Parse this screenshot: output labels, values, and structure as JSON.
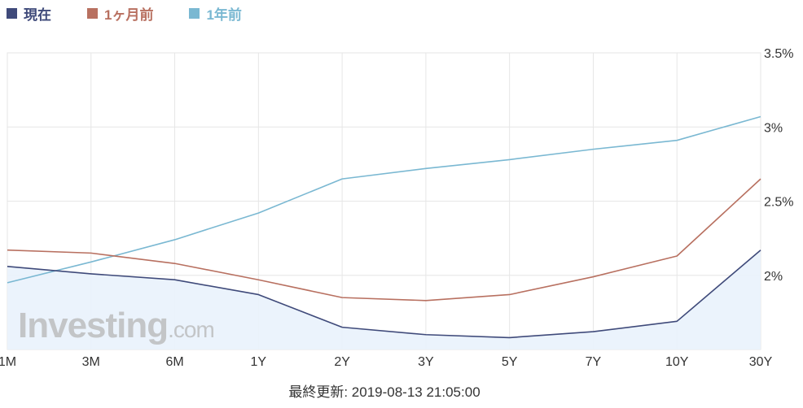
{
  "chart_data": {
    "type": "line",
    "categories": [
      "1M",
      "3M",
      "6M",
      "1Y",
      "2Y",
      "3Y",
      "5Y",
      "7Y",
      "10Y",
      "30Y"
    ],
    "series": [
      {
        "name": "現在",
        "color": "#3f4a7a",
        "values": [
          2.06,
          2.01,
          1.97,
          1.87,
          1.65,
          1.6,
          1.58,
          1.62,
          1.69,
          2.17
        ],
        "filled": true
      },
      {
        "name": "1ヶ月前",
        "color": "#b87060",
        "values": [
          2.17,
          2.15,
          2.08,
          1.97,
          1.85,
          1.83,
          1.87,
          1.99,
          2.13,
          2.65
        ],
        "filled": false
      },
      {
        "name": "1年前",
        "color": "#7ab8d2",
        "values": [
          1.95,
          2.09,
          2.24,
          2.42,
          2.65,
          2.72,
          2.78,
          2.85,
          2.91,
          3.07
        ],
        "filled": false
      }
    ],
    "yticks": [
      "2%",
      "2.5%",
      "3%",
      "3.5%"
    ],
    "ytick_values": [
      2.0,
      2.5,
      3.0,
      3.5
    ],
    "ylim": [
      1.5,
      3.5
    ],
    "grid": true,
    "legend_position": "top-left",
    "watermark": "Investing.com"
  },
  "footer": {
    "timestamp": "最終更新: 2019-08-13 21:05:00"
  }
}
